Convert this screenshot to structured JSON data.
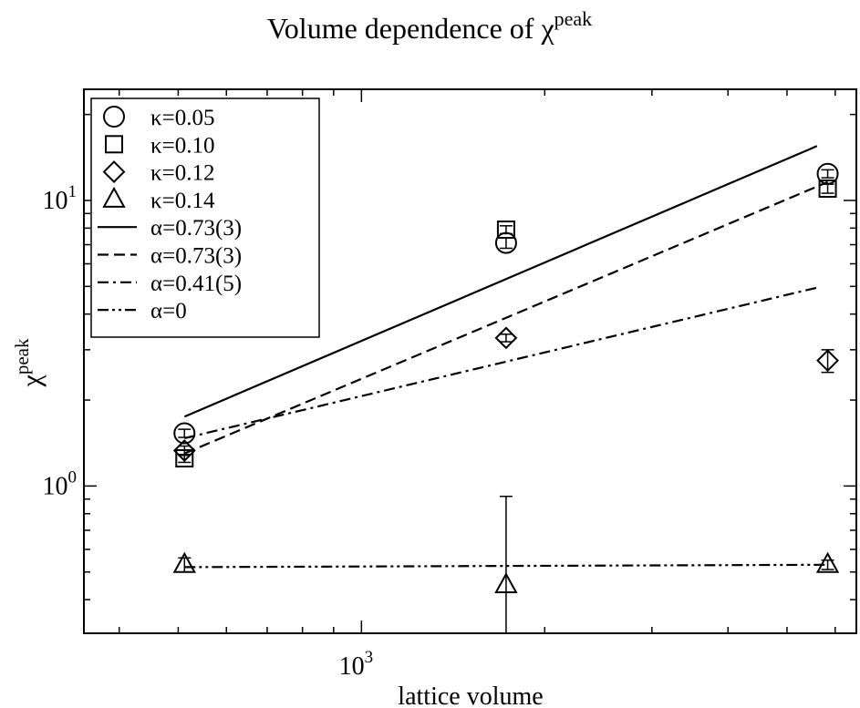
{
  "chart_data": {
    "type": "scatter",
    "title": "Volume dependence of χ",
    "title_superscript": "peak",
    "xlabel": "lattice volume",
    "ylabel": "χ",
    "ylabel_superscript": "peak",
    "xscale": "log",
    "yscale": "log",
    "xlim": [
      350,
      6500
    ],
    "ylim": [
      0.305,
      24.5
    ],
    "x_ticks": [
      {
        "value": 1000,
        "base": "10",
        "exp": "3"
      }
    ],
    "y_ticks": [
      {
        "value": 1,
        "base": "10",
        "exp": "0"
      },
      {
        "value": 10,
        "base": "10",
        "exp": "1"
      }
    ],
    "grid": false,
    "legend_position": "top-left",
    "series": [
      {
        "name": "κ=0.05",
        "marker": "circle",
        "points": [
          {
            "x": 512,
            "y": 1.53,
            "err": 0.05
          },
          {
            "x": 1728,
            "y": 7.1,
            "err": 0.3
          },
          {
            "x": 5832,
            "y": 12.4,
            "err": 0.4
          }
        ]
      },
      {
        "name": "κ=0.10",
        "marker": "square",
        "points": [
          {
            "x": 512,
            "y": 1.25,
            "err": 0.04
          },
          {
            "x": 1728,
            "y": 7.9,
            "err": 0.25
          },
          {
            "x": 5832,
            "y": 11.0,
            "err": 0.4
          }
        ]
      },
      {
        "name": "κ=0.12",
        "marker": "diamond",
        "points": [
          {
            "x": 512,
            "y": 1.33,
            "err": 0.05
          },
          {
            "x": 1728,
            "y": 3.3,
            "err": 0.1
          },
          {
            "x": 5832,
            "y": 2.75,
            "err": 0.25
          }
        ]
      },
      {
        "name": "κ=0.14",
        "marker": "triangle",
        "points": [
          {
            "x": 512,
            "y": 0.53,
            "err": 0.03
          },
          {
            "x": 1728,
            "y": 0.45,
            "err": 0.47
          },
          {
            "x": 5832,
            "y": 0.53,
            "err": 0.02
          }
        ]
      },
      {
        "name": "α=0.73(3)",
        "dash": "solid",
        "points": [
          {
            "x": 512,
            "y": 1.75
          },
          {
            "x": 5600,
            "y": 15.5
          }
        ]
      },
      {
        "name": "α=0.73(3)",
        "dash": "dashed",
        "points": [
          {
            "x": 512,
            "y": 1.3
          },
          {
            "x": 5832,
            "y": 11.6
          }
        ]
      },
      {
        "name": "α=0.41(5)",
        "dash": "dashdot",
        "points": [
          {
            "x": 512,
            "y": 1.47
          },
          {
            "x": 5600,
            "y": 4.95
          }
        ]
      },
      {
        "name": "α=0",
        "dash": "dashdotdot",
        "points": [
          {
            "x": 512,
            "y": 0.52
          },
          {
            "x": 5832,
            "y": 0.53
          }
        ]
      }
    ]
  }
}
